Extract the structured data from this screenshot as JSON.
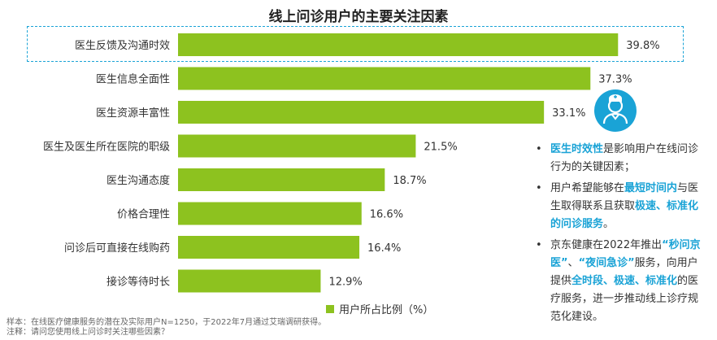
{
  "title": "线上问诊用户的主要关注因素",
  "chart_data": {
    "type": "bar",
    "orientation": "horizontal",
    "categories": [
      "医生反馈及沟通时效",
      "医生信息全面性",
      "医生资源丰富性",
      "医生及医生所在医院的职级",
      "医生沟通态度",
      "价格合理性",
      "问诊后可直接在线购药",
      "接诊等待时长"
    ],
    "values": [
      39.8,
      37.3,
      33.1,
      21.5,
      18.7,
      16.6,
      16.4,
      12.9
    ],
    "value_labels": [
      "39.8%",
      "37.3%",
      "33.1%",
      "21.5%",
      "18.7%",
      "16.6%",
      "16.4%",
      "12.9%"
    ],
    "series": [
      {
        "name": "用户所占比例（%）",
        "values": [
          39.8,
          37.3,
          33.1,
          21.5,
          18.7,
          16.6,
          16.4,
          12.9
        ]
      }
    ],
    "xlim": [
      0,
      40
    ],
    "grid": false,
    "legend_position": "bottom",
    "highlighted_category": "医生反馈及沟通时效"
  },
  "colors": {
    "bar": "#8dc21f",
    "accent": "#1aa3d6"
  },
  "legend_label": "用户所占比例（%）",
  "notes": {
    "sample": "样本：在线医疗健康服务的潜在及实际用户N=1250，于2022年7月通过艾瑞调研获得。",
    "note": "注释：请问您使用线上问诊时关注哪些因素？"
  },
  "icon": "doctor-icon",
  "side_panel": [
    [
      {
        "text": "医生时效性",
        "hl": true
      },
      {
        "text": "是影响用户在线问诊行为的关键因素；",
        "hl": false
      }
    ],
    [
      {
        "text": "用户希望能够在",
        "hl": false
      },
      {
        "text": "最短时间内",
        "hl": true
      },
      {
        "text": "与医生取得联系且获取",
        "hl": false
      },
      {
        "text": "极速、标准化的问诊服务",
        "hl": true
      },
      {
        "text": "。",
        "hl": false
      }
    ],
    [
      {
        "text": "京东健康在2022年推出",
        "hl": false
      },
      {
        "text": "“秒问京医”",
        "hl": true
      },
      {
        "text": "、",
        "hl": false
      },
      {
        "text": "“夜间急诊”",
        "hl": true
      },
      {
        "text": "服务，向用户提供",
        "hl": false
      },
      {
        "text": "全时段、极速、标准化",
        "hl": true
      },
      {
        "text": "的医疗服务，进一步推动线上诊疗规范化建设。",
        "hl": false
      }
    ]
  ]
}
